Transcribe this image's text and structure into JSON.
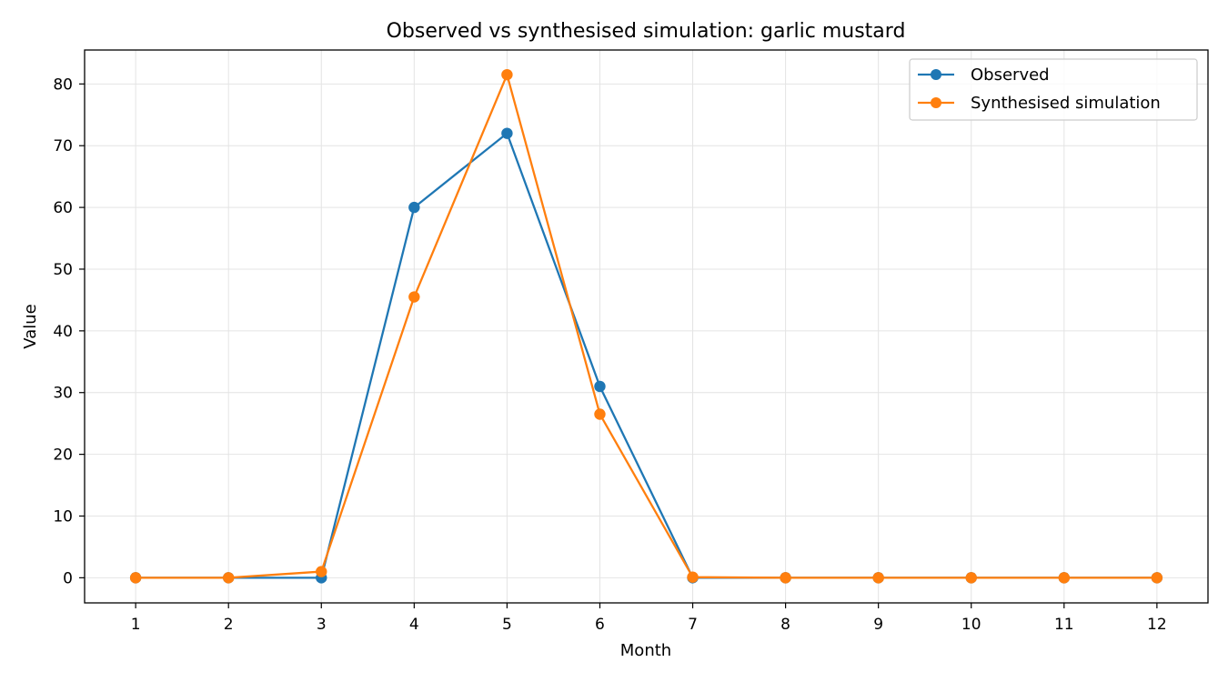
{
  "chart_data": {
    "type": "line",
    "title": "Observed vs synthesised simulation: garlic mustard",
    "xlabel": "Month",
    "ylabel": "Value",
    "x": [
      1,
      2,
      3,
      4,
      5,
      6,
      7,
      8,
      9,
      10,
      11,
      12
    ],
    "xticks": [
      "1",
      "2",
      "3",
      "4",
      "5",
      "6",
      "7",
      "8",
      "9",
      "10",
      "11",
      "12"
    ],
    "yticks": [
      0,
      10,
      20,
      30,
      40,
      50,
      60,
      70,
      80
    ],
    "xlim": [
      0.45,
      12.55
    ],
    "ylim": [
      -4.07,
      85.5
    ],
    "grid": true,
    "legend_position": "top-right",
    "series": [
      {
        "name": "Observed",
        "color": "#1f77b4",
        "marker": "circle",
        "values": [
          0,
          0,
          0,
          60,
          72,
          31,
          0,
          0,
          0,
          0,
          0,
          0
        ]
      },
      {
        "name": "Synthesised simulation",
        "color": "#ff7f0e",
        "marker": "circle",
        "values": [
          0,
          0,
          1,
          45.5,
          81.5,
          26.5,
          0.1,
          0,
          0,
          0,
          0,
          0
        ]
      }
    ]
  }
}
